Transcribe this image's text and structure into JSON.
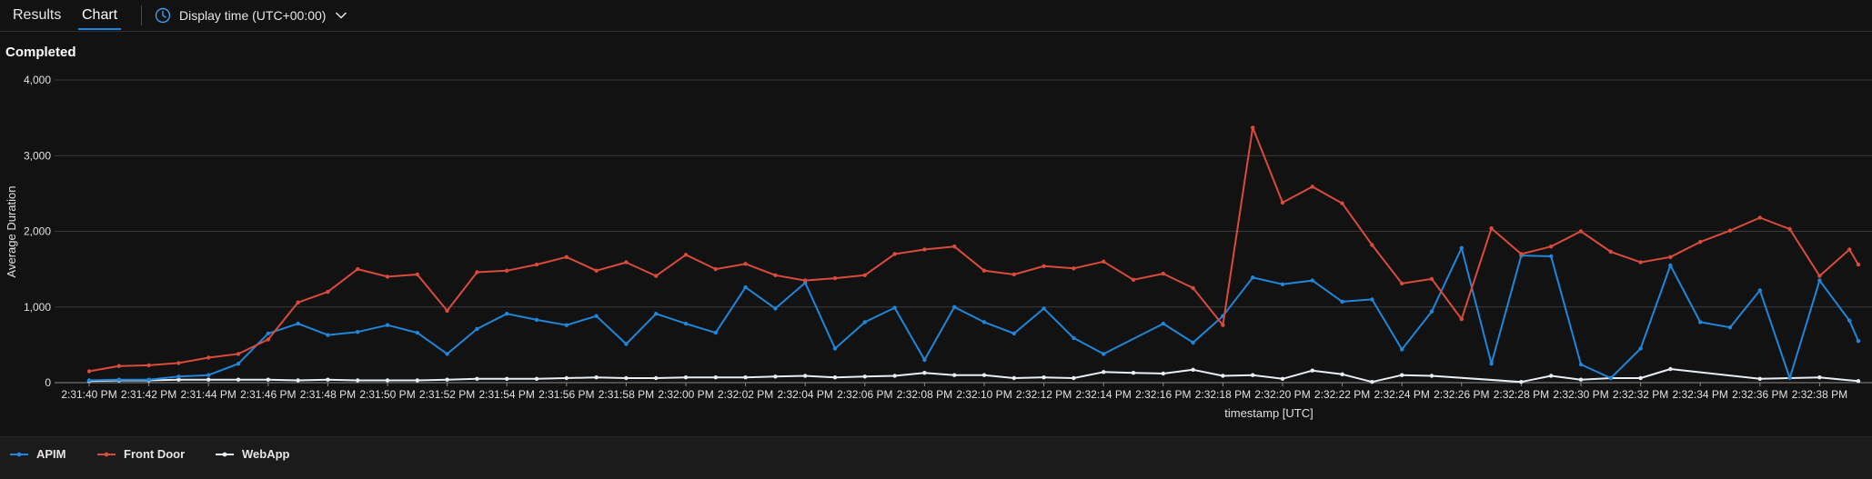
{
  "tabs": [
    {
      "label": "Results",
      "active": false
    },
    {
      "label": "Chart",
      "active": true
    }
  ],
  "time_display": {
    "label": "Display time (UTC+00:00)",
    "icon": "clock-icon",
    "chevron": "chevron-down-icon"
  },
  "status": "Completed",
  "colors": {
    "APIM": "#1f86d9",
    "Front Door": "#d94b3b",
    "WebApp": "#e8eef5",
    "grid": "#3a3a3a"
  },
  "chart_data": {
    "type": "line",
    "ylabel": "Average Duration",
    "xlabel": "timestamp [UTC]",
    "ylim": [
      0,
      4000
    ],
    "y_ticks": [
      "0",
      "1,000",
      "2,000",
      "3,000",
      "4,000"
    ],
    "x_range_seconds": [
      0,
      59.3
    ],
    "x_ticks": [
      {
        "t": 0,
        "label": "2:31:40 PM"
      },
      {
        "t": 2,
        "label": "2:31:42 PM"
      },
      {
        "t": 4,
        "label": "2:31:44 PM"
      },
      {
        "t": 6,
        "label": "2:31:46 PM"
      },
      {
        "t": 8,
        "label": "2:31:48 PM"
      },
      {
        "t": 10,
        "label": "2:31:50 PM"
      },
      {
        "t": 12,
        "label": "2:31:52 PM"
      },
      {
        "t": 14,
        "label": "2:31:54 PM"
      },
      {
        "t": 16,
        "label": "2:31:56 PM"
      },
      {
        "t": 18,
        "label": "2:31:58 PM"
      },
      {
        "t": 20,
        "label": "2:32:00 PM"
      },
      {
        "t": 22,
        "label": "2:32:02 PM"
      },
      {
        "t": 24,
        "label": "2:32:04 PM"
      },
      {
        "t": 26,
        "label": "2:32:06 PM"
      },
      {
        "t": 28,
        "label": "2:32:08 PM"
      },
      {
        "t": 30,
        "label": "2:32:10 PM"
      },
      {
        "t": 32,
        "label": "2:32:12 PM"
      },
      {
        "t": 34,
        "label": "2:32:14 PM"
      },
      {
        "t": 36,
        "label": "2:32:16 PM"
      },
      {
        "t": 38,
        "label": "2:32:18 PM"
      },
      {
        "t": 40,
        "label": "2:32:20 PM"
      },
      {
        "t": 42,
        "label": "2:32:22 PM"
      },
      {
        "t": 44,
        "label": "2:32:24 PM"
      },
      {
        "t": 46,
        "label": "2:32:26 PM"
      },
      {
        "t": 48,
        "label": "2:32:28 PM"
      },
      {
        "t": 50,
        "label": "2:32:30 PM"
      },
      {
        "t": 52,
        "label": "2:32:32 PM"
      },
      {
        "t": 54,
        "label": "2:32:34 PM"
      },
      {
        "t": 56,
        "label": "2:32:36 PM"
      },
      {
        "t": 58,
        "label": "2:32:38 PM"
      }
    ],
    "series": [
      {
        "name": "APIM",
        "points": [
          [
            0,
            30
          ],
          [
            1,
            40
          ],
          [
            2,
            40
          ],
          [
            3,
            80
          ],
          [
            4,
            100
          ],
          [
            5,
            250
          ],
          [
            6,
            650
          ],
          [
            7,
            780
          ],
          [
            8,
            630
          ],
          [
            9,
            670
          ],
          [
            10,
            760
          ],
          [
            11,
            660
          ],
          [
            12,
            380
          ],
          [
            13,
            710
          ],
          [
            14,
            910
          ],
          [
            15,
            830
          ],
          [
            16,
            760
          ],
          [
            17,
            880
          ],
          [
            18,
            510
          ],
          [
            19,
            910
          ],
          [
            20,
            780
          ],
          [
            21,
            660
          ],
          [
            22,
            1260
          ],
          [
            23,
            980
          ],
          [
            24,
            1320
          ],
          [
            25,
            450
          ],
          [
            26,
            800
          ],
          [
            27,
            990
          ],
          [
            28,
            300
          ],
          [
            29,
            1000
          ],
          [
            30,
            800
          ],
          [
            31,
            650
          ],
          [
            32,
            980
          ],
          [
            33,
            590
          ],
          [
            34,
            380
          ],
          [
            36,
            780
          ],
          [
            37,
            530
          ],
          [
            38,
            880
          ],
          [
            39,
            1390
          ],
          [
            40,
            1300
          ],
          [
            41,
            1350
          ],
          [
            42,
            1070
          ],
          [
            43,
            1100
          ],
          [
            44,
            440
          ],
          [
            45,
            940
          ],
          [
            46,
            1780
          ],
          [
            47,
            250
          ],
          [
            48,
            1680
          ],
          [
            49,
            1670
          ],
          [
            50,
            240
          ],
          [
            51,
            60
          ],
          [
            52,
            450
          ],
          [
            53,
            1550
          ],
          [
            54,
            800
          ],
          [
            55,
            730
          ],
          [
            56,
            1220
          ],
          [
            57,
            60
          ],
          [
            58,
            1350
          ],
          [
            59,
            820
          ],
          [
            59.3,
            550
          ]
        ]
      },
      {
        "name": "Front Door",
        "points": [
          [
            0,
            150
          ],
          [
            1,
            220
          ],
          [
            2,
            230
          ],
          [
            3,
            260
          ],
          [
            4,
            330
          ],
          [
            5,
            380
          ],
          [
            6,
            570
          ],
          [
            7,
            1060
          ],
          [
            8,
            1200
          ],
          [
            9,
            1500
          ],
          [
            10,
            1400
          ],
          [
            11,
            1430
          ],
          [
            12,
            950
          ],
          [
            13,
            1460
          ],
          [
            14,
            1480
          ],
          [
            15,
            1560
          ],
          [
            16,
            1660
          ],
          [
            17,
            1480
          ],
          [
            18,
            1590
          ],
          [
            19,
            1410
          ],
          [
            20,
            1690
          ],
          [
            21,
            1500
          ],
          [
            22,
            1570
          ],
          [
            23,
            1420
          ],
          [
            24,
            1350
          ],
          [
            25,
            1380
          ],
          [
            26,
            1420
          ],
          [
            27,
            1700
          ],
          [
            28,
            1760
          ],
          [
            29,
            1800
          ],
          [
            30,
            1480
          ],
          [
            31,
            1430
          ],
          [
            32,
            1540
          ],
          [
            33,
            1510
          ],
          [
            34,
            1600
          ],
          [
            35,
            1360
          ],
          [
            36,
            1440
          ],
          [
            37,
            1250
          ],
          [
            38,
            760
          ],
          [
            39,
            3370
          ],
          [
            40,
            2380
          ],
          [
            41,
            2590
          ],
          [
            42,
            2370
          ],
          [
            43,
            1820
          ],
          [
            44,
            1310
          ],
          [
            45,
            1370
          ],
          [
            46,
            840
          ],
          [
            47,
            2040
          ],
          [
            48,
            1700
          ],
          [
            49,
            1800
          ],
          [
            50,
            2000
          ],
          [
            51,
            1730
          ],
          [
            52,
            1590
          ],
          [
            53,
            1660
          ],
          [
            54,
            1860
          ],
          [
            55,
            2010
          ],
          [
            56,
            2180
          ],
          [
            57,
            2030
          ],
          [
            58,
            1410
          ],
          [
            59,
            1760
          ],
          [
            59.3,
            1560
          ]
        ]
      },
      {
        "name": "WebApp",
        "points": [
          [
            0,
            20
          ],
          [
            1,
            30
          ],
          [
            2,
            30
          ],
          [
            3,
            40
          ],
          [
            4,
            40
          ],
          [
            5,
            40
          ],
          [
            6,
            40
          ],
          [
            7,
            30
          ],
          [
            8,
            40
          ],
          [
            9,
            30
          ],
          [
            10,
            30
          ],
          [
            11,
            30
          ],
          [
            12,
            40
          ],
          [
            13,
            50
          ],
          [
            14,
            50
          ],
          [
            15,
            50
          ],
          [
            16,
            60
          ],
          [
            17,
            70
          ],
          [
            18,
            60
          ],
          [
            19,
            60
          ],
          [
            20,
            70
          ],
          [
            21,
            70
          ],
          [
            22,
            70
          ],
          [
            23,
            80
          ],
          [
            24,
            90
          ],
          [
            25,
            70
          ],
          [
            26,
            80
          ],
          [
            27,
            90
          ],
          [
            28,
            130
          ],
          [
            29,
            100
          ],
          [
            30,
            100
          ],
          [
            31,
            60
          ],
          [
            32,
            70
          ],
          [
            33,
            60
          ],
          [
            34,
            140
          ],
          [
            35,
            130
          ],
          [
            36,
            120
          ],
          [
            37,
            170
          ],
          [
            38,
            90
          ],
          [
            39,
            100
          ],
          [
            40,
            50
          ],
          [
            41,
            160
          ],
          [
            42,
            110
          ],
          [
            43,
            10
          ],
          [
            44,
            100
          ],
          [
            45,
            90
          ],
          [
            48,
            10
          ],
          [
            49,
            90
          ],
          [
            50,
            40
          ],
          [
            51,
            60
          ],
          [
            52,
            60
          ],
          [
            53,
            180
          ],
          [
            56,
            50
          ],
          [
            58,
            70
          ],
          [
            59.3,
            20
          ]
        ]
      }
    ]
  },
  "legend": [
    {
      "name": "APIM"
    },
    {
      "name": "Front Door"
    },
    {
      "name": "WebApp"
    }
  ]
}
